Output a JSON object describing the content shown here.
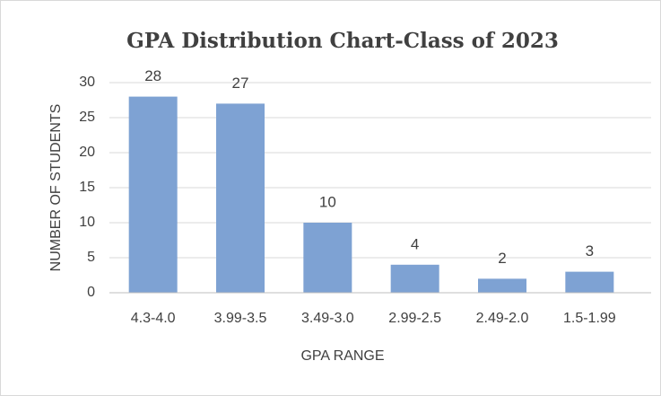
{
  "chart_data": {
    "type": "bar",
    "title": "GPA Distribution Chart-Class of 2023",
    "x_label": "GPA RANGE",
    "y_label": "NUMBER OF STUDENTS",
    "categories": [
      "4.3-4.0",
      "3.99-3.5",
      "3.49-3.0",
      "2.99-2.5",
      "2.49-2.0",
      "1.5-1.99"
    ],
    "values": [
      28,
      27,
      10,
      4,
      2,
      3
    ],
    "color": "#7ea2d3",
    "ylim": [
      0,
      30
    ],
    "yticks": [
      0,
      5,
      10,
      15,
      20,
      25,
      30
    ],
    "grid": true
  }
}
